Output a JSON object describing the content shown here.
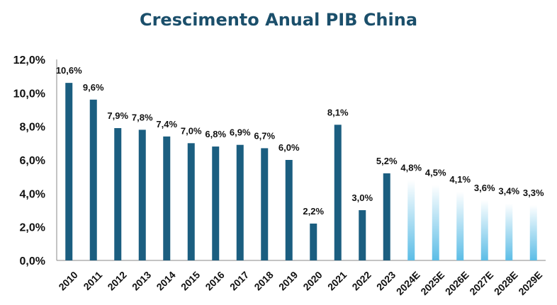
{
  "chart_data": {
    "type": "bar",
    "title": "Crescimento Anual PIB China",
    "categories": [
      "2010",
      "2011",
      "2012",
      "2013",
      "2014",
      "2015",
      "2016",
      "2017",
      "2018",
      "2019",
      "2020",
      "2021",
      "2022",
      "2023",
      "2024E",
      "2025E",
      "2026E",
      "2027E",
      "2028E",
      "2029E"
    ],
    "values": [
      10.6,
      9.6,
      7.9,
      7.8,
      7.4,
      7.0,
      6.8,
      6.9,
      6.7,
      6.0,
      2.2,
      8.1,
      3.0,
      5.2,
      4.8,
      4.5,
      4.1,
      3.6,
      3.4,
      3.3
    ],
    "data_labels": [
      "10,6%",
      "9,6%",
      "7,9%",
      "7,8%",
      "7,4%",
      "7,0%",
      "6,8%",
      "6,9%",
      "6,7%",
      "6,0%",
      "2,2%",
      "8,1%",
      "3,0%",
      "5,2%",
      "4,8%",
      "4,5%",
      "4,1%",
      "3,6%",
      "3,4%",
      "3,3%"
    ],
    "projected_from_index": 14,
    "ylim": [
      0,
      12
    ],
    "yticks": [
      0,
      2,
      4,
      6,
      8,
      10,
      12
    ],
    "ytick_labels": [
      "0,0%",
      "2,0%",
      "4,0%",
      "6,0%",
      "8,0%",
      "10,0%",
      "12,0%"
    ],
    "xlabel": "",
    "ylabel": "",
    "grid": false,
    "colors": {
      "actual": "#1b5e80",
      "projected_top": "#ffffff",
      "projected_bottom": "#5cbde6",
      "title": "#1b4f6b"
    }
  }
}
